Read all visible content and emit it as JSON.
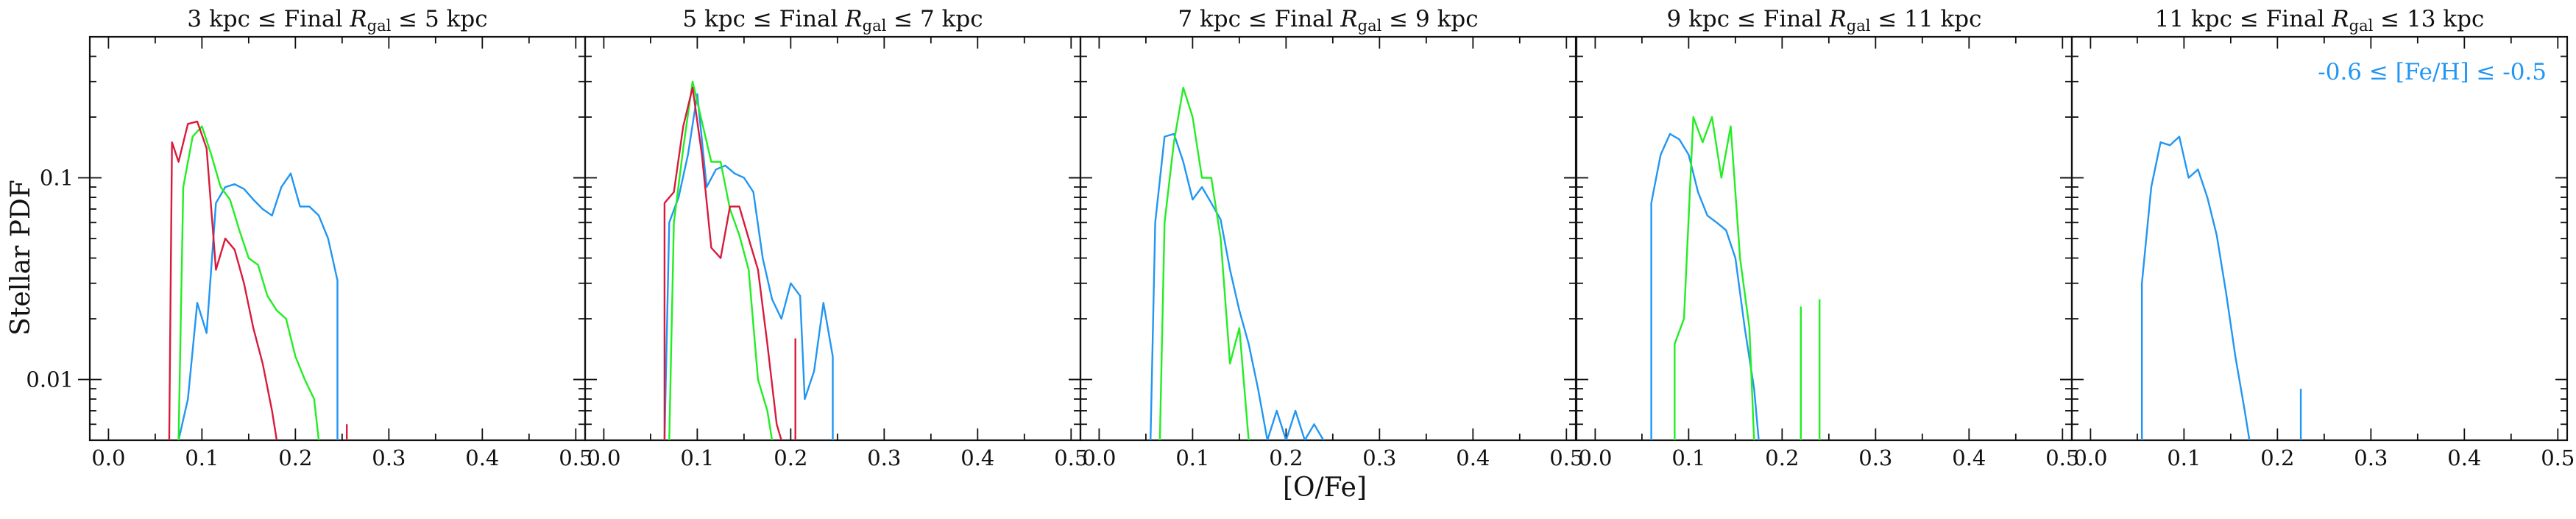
{
  "figure": {
    "ylabel": "Stellar PDF",
    "xlabel": "[O/Fe]"
  },
  "chart_data": [
    {
      "type": "line",
      "title": "3 kpc ≤ Final R_gal ≤ 5 kpc",
      "xlim": [
        -0.02,
        0.51
      ],
      "ylim": [
        0.005,
        0.5
      ],
      "yscale": "log",
      "xticks": [
        "0.0",
        "0.1",
        "0.2",
        "0.3",
        "0.4",
        "0.5"
      ],
      "yticks": [
        "0.1",
        "0.01"
      ],
      "series": [
        {
          "color": "#2196f3",
          "points": [
            [
              0.075,
              0.005
            ],
            [
              0.085,
              0.008
            ],
            [
              0.095,
              0.024
            ],
            [
              0.105,
              0.017
            ],
            [
              0.115,
              0.075
            ],
            [
              0.125,
              0.09
            ],
            [
              0.135,
              0.093
            ],
            [
              0.145,
              0.088
            ],
            [
              0.155,
              0.078
            ],
            [
              0.165,
              0.07
            ],
            [
              0.175,
              0.065
            ],
            [
              0.185,
              0.09
            ],
            [
              0.195,
              0.105
            ],
            [
              0.205,
              0.072
            ],
            [
              0.215,
              0.072
            ],
            [
              0.225,
              0.065
            ],
            [
              0.235,
              0.05
            ],
            [
              0.245,
              0.031
            ],
            [
              0.245,
              0.005
            ]
          ]
        },
        {
          "color": "#22ee22",
          "points": [
            [
              0.075,
              0.005
            ],
            [
              0.08,
              0.09
            ],
            [
              0.09,
              0.16
            ],
            [
              0.1,
              0.18
            ],
            [
              0.11,
              0.13
            ],
            [
              0.12,
              0.09
            ],
            [
              0.13,
              0.078
            ],
            [
              0.14,
              0.055
            ],
            [
              0.15,
              0.04
            ],
            [
              0.16,
              0.037
            ],
            [
              0.17,
              0.026
            ],
            [
              0.18,
              0.022
            ],
            [
              0.19,
              0.02
            ],
            [
              0.2,
              0.013
            ],
            [
              0.21,
              0.01
            ],
            [
              0.22,
              0.008
            ],
            [
              0.225,
              0.005
            ]
          ]
        },
        {
          "color": "#d81b3c",
          "points": [
            [
              0.065,
              0.005
            ],
            [
              0.068,
              0.15
            ],
            [
              0.075,
              0.12
            ],
            [
              0.085,
              0.185
            ],
            [
              0.095,
              0.19
            ],
            [
              0.105,
              0.14
            ],
            [
              0.115,
              0.035
            ],
            [
              0.125,
              0.05
            ],
            [
              0.135,
              0.044
            ],
            [
              0.145,
              0.03
            ],
            [
              0.155,
              0.018
            ],
            [
              0.165,
              0.012
            ],
            [
              0.175,
              0.007
            ],
            [
              0.18,
              0.005
            ]
          ]
        },
        {
          "color": "#d81b3c",
          "points": [
            [
              0.255,
              0.005
            ],
            [
              0.255,
              0.006
            ]
          ]
        }
      ]
    },
    {
      "type": "line",
      "title": "5 kpc ≤ Final R_gal ≤ 7 kpc",
      "xlim": [
        -0.02,
        0.51
      ],
      "ylim": [
        0.005,
        0.5
      ],
      "yscale": "log",
      "xticks": [
        "0.0",
        "0.1",
        "0.2",
        "0.3",
        "0.4",
        "0.5"
      ],
      "yticks": [],
      "series": [
        {
          "color": "#2196f3",
          "points": [
            [
              0.065,
              0.005
            ],
            [
              0.07,
              0.06
            ],
            [
              0.08,
              0.08
            ],
            [
              0.09,
              0.13
            ],
            [
              0.1,
              0.26
            ],
            [
              0.11,
              0.09
            ],
            [
              0.12,
              0.11
            ],
            [
              0.13,
              0.115
            ],
            [
              0.14,
              0.105
            ],
            [
              0.15,
              0.1
            ],
            [
              0.16,
              0.085
            ],
            [
              0.17,
              0.04
            ],
            [
              0.18,
              0.025
            ],
            [
              0.19,
              0.02
            ],
            [
              0.2,
              0.03
            ],
            [
              0.21,
              0.026
            ],
            [
              0.215,
              0.008
            ],
            [
              0.225,
              0.011
            ],
            [
              0.235,
              0.024
            ],
            [
              0.245,
              0.013
            ],
            [
              0.245,
              0.005
            ]
          ]
        },
        {
          "color": "#22ee22",
          "points": [
            [
              0.07,
              0.005
            ],
            [
              0.075,
              0.06
            ],
            [
              0.085,
              0.14
            ],
            [
              0.095,
              0.3
            ],
            [
              0.105,
              0.19
            ],
            [
              0.115,
              0.12
            ],
            [
              0.125,
              0.12
            ],
            [
              0.135,
              0.07
            ],
            [
              0.145,
              0.052
            ],
            [
              0.155,
              0.035
            ],
            [
              0.165,
              0.01
            ],
            [
              0.175,
              0.007
            ],
            [
              0.18,
              0.005
            ]
          ]
        },
        {
          "color": "#d81b3c",
          "points": [
            [
              0.065,
              0.005
            ],
            [
              0.065,
              0.075
            ],
            [
              0.075,
              0.085
            ],
            [
              0.085,
              0.18
            ],
            [
              0.095,
              0.28
            ],
            [
              0.105,
              0.13
            ],
            [
              0.115,
              0.045
            ],
            [
              0.125,
              0.04
            ],
            [
              0.135,
              0.072
            ],
            [
              0.145,
              0.072
            ],
            [
              0.155,
              0.05
            ],
            [
              0.165,
              0.035
            ],
            [
              0.175,
              0.015
            ],
            [
              0.185,
              0.006
            ],
            [
              0.19,
              0.005
            ]
          ]
        },
        {
          "color": "#d81b3c",
          "points": [
            [
              0.205,
              0.005
            ],
            [
              0.205,
              0.016
            ]
          ]
        }
      ]
    },
    {
      "type": "line",
      "title": "7 kpc ≤ Final R_gal ≤ 9 kpc",
      "xlim": [
        -0.02,
        0.51
      ],
      "ylim": [
        0.005,
        0.5
      ],
      "yscale": "log",
      "xticks": [
        "0.0",
        "0.1",
        "0.2",
        "0.3",
        "0.4",
        "0.5"
      ],
      "yticks": [],
      "series": [
        {
          "color": "#2196f3",
          "points": [
            [
              0.055,
              0.005
            ],
            [
              0.06,
              0.06
            ],
            [
              0.07,
              0.16
            ],
            [
              0.08,
              0.165
            ],
            [
              0.09,
              0.12
            ],
            [
              0.1,
              0.078
            ],
            [
              0.11,
              0.09
            ],
            [
              0.12,
              0.075
            ],
            [
              0.13,
              0.062
            ],
            [
              0.14,
              0.035
            ],
            [
              0.15,
              0.022
            ],
            [
              0.16,
              0.015
            ],
            [
              0.17,
              0.009
            ],
            [
              0.18,
              0.005
            ],
            [
              0.19,
              0.007
            ],
            [
              0.2,
              0.005
            ],
            [
              0.21,
              0.007
            ],
            [
              0.22,
              0.005
            ],
            [
              0.23,
              0.006
            ],
            [
              0.24,
              0.005
            ]
          ]
        },
        {
          "color": "#22ee22",
          "points": [
            [
              0.065,
              0.005
            ],
            [
              0.07,
              0.06
            ],
            [
              0.08,
              0.15
            ],
            [
              0.09,
              0.28
            ],
            [
              0.1,
              0.2
            ],
            [
              0.11,
              0.1
            ],
            [
              0.12,
              0.1
            ],
            [
              0.13,
              0.05
            ],
            [
              0.14,
              0.012
            ],
            [
              0.15,
              0.018
            ],
            [
              0.16,
              0.005
            ]
          ]
        }
      ]
    },
    {
      "type": "line",
      "title": "9 kpc ≤ Final R_gal ≤ 11 kpc",
      "xlim": [
        -0.02,
        0.51
      ],
      "ylim": [
        0.005,
        0.5
      ],
      "yscale": "log",
      "xticks": [
        "0.0",
        "0.1",
        "0.2",
        "0.3",
        "0.4",
        "0.5"
      ],
      "yticks": [],
      "series": [
        {
          "color": "#2196f3",
          "points": [
            [
              0.06,
              0.005
            ],
            [
              0.06,
              0.075
            ],
            [
              0.07,
              0.13
            ],
            [
              0.08,
              0.165
            ],
            [
              0.09,
              0.155
            ],
            [
              0.1,
              0.13
            ],
            [
              0.11,
              0.085
            ],
            [
              0.12,
              0.065
            ],
            [
              0.13,
              0.06
            ],
            [
              0.14,
              0.055
            ],
            [
              0.15,
              0.04
            ],
            [
              0.16,
              0.018
            ],
            [
              0.17,
              0.009
            ],
            [
              0.175,
              0.005
            ]
          ]
        },
        {
          "color": "#22ee22",
          "points": [
            [
              0.085,
              0.005
            ],
            [
              0.085,
              0.015
            ],
            [
              0.095,
              0.02
            ],
            [
              0.105,
              0.2
            ],
            [
              0.115,
              0.15
            ],
            [
              0.125,
              0.2
            ],
            [
              0.135,
              0.1
            ],
            [
              0.145,
              0.18
            ],
            [
              0.155,
              0.04
            ],
            [
              0.165,
              0.018
            ],
            [
              0.17,
              0.005
            ]
          ]
        },
        {
          "color": "#22ee22",
          "points": [
            [
              0.22,
              0.005
            ],
            [
              0.22,
              0.023
            ]
          ]
        },
        {
          "color": "#22ee22",
          "points": [
            [
              0.24,
              0.005
            ],
            [
              0.24,
              0.025
            ]
          ]
        }
      ]
    },
    {
      "type": "line",
      "title": "11 kpc ≤ Final R_gal ≤ 13 kpc",
      "xlim": [
        -0.02,
        0.51
      ],
      "ylim": [
        0.005,
        0.5
      ],
      "yscale": "log",
      "xticks": [
        "0.0",
        "0.1",
        "0.2",
        "0.3",
        "0.4",
        "0.5"
      ],
      "yticks": [],
      "legend_text": "-0.6 ≤ [Fe/H] ≤ -0.5",
      "legend_color": "#2196f3",
      "legend_placement": "top-right",
      "series": [
        {
          "color": "#2196f3",
          "points": [
            [
              0.055,
              0.005
            ],
            [
              0.055,
              0.03
            ],
            [
              0.065,
              0.09
            ],
            [
              0.075,
              0.15
            ],
            [
              0.085,
              0.145
            ],
            [
              0.095,
              0.16
            ],
            [
              0.105,
              0.1
            ],
            [
              0.115,
              0.11
            ],
            [
              0.125,
              0.08
            ],
            [
              0.135,
              0.052
            ],
            [
              0.145,
              0.027
            ],
            [
              0.155,
              0.013
            ],
            [
              0.165,
              0.007
            ],
            [
              0.17,
              0.005
            ]
          ]
        },
        {
          "color": "#2196f3",
          "points": [
            [
              0.225,
              0.005
            ],
            [
              0.225,
              0.009
            ]
          ]
        }
      ]
    }
  ]
}
